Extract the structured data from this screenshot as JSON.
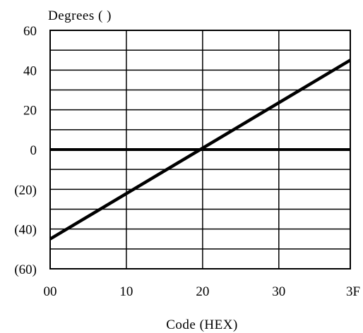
{
  "chart_data": {
    "type": "line",
    "ylabel": "Degrees ( )",
    "xlabel": "Code (HEX)",
    "xlim": [
      0,
      63
    ],
    "ylim": [
      -60,
      60
    ],
    "x_ticks": [
      {
        "value": 0,
        "label": "00"
      },
      {
        "value": 16,
        "label": "10"
      },
      {
        "value": 32,
        "label": "20"
      },
      {
        "value": 48,
        "label": "30"
      },
      {
        "value": 63,
        "label": "3F"
      }
    ],
    "y_ticks": [
      {
        "value": 60,
        "label": "60"
      },
      {
        "value": 40,
        "label": "40"
      },
      {
        "value": 20,
        "label": "20"
      },
      {
        "value": 0,
        "label": "0"
      },
      {
        "value": -20,
        "label": "(20)"
      },
      {
        "value": -40,
        "label": "(40)"
      },
      {
        "value": -60,
        "label": "(60)"
      }
    ],
    "y_minor_step": 10,
    "grid": true,
    "series": [
      {
        "x": [
          0,
          63
        ],
        "y": [
          -45,
          45
        ],
        "color": "#000000"
      }
    ]
  }
}
